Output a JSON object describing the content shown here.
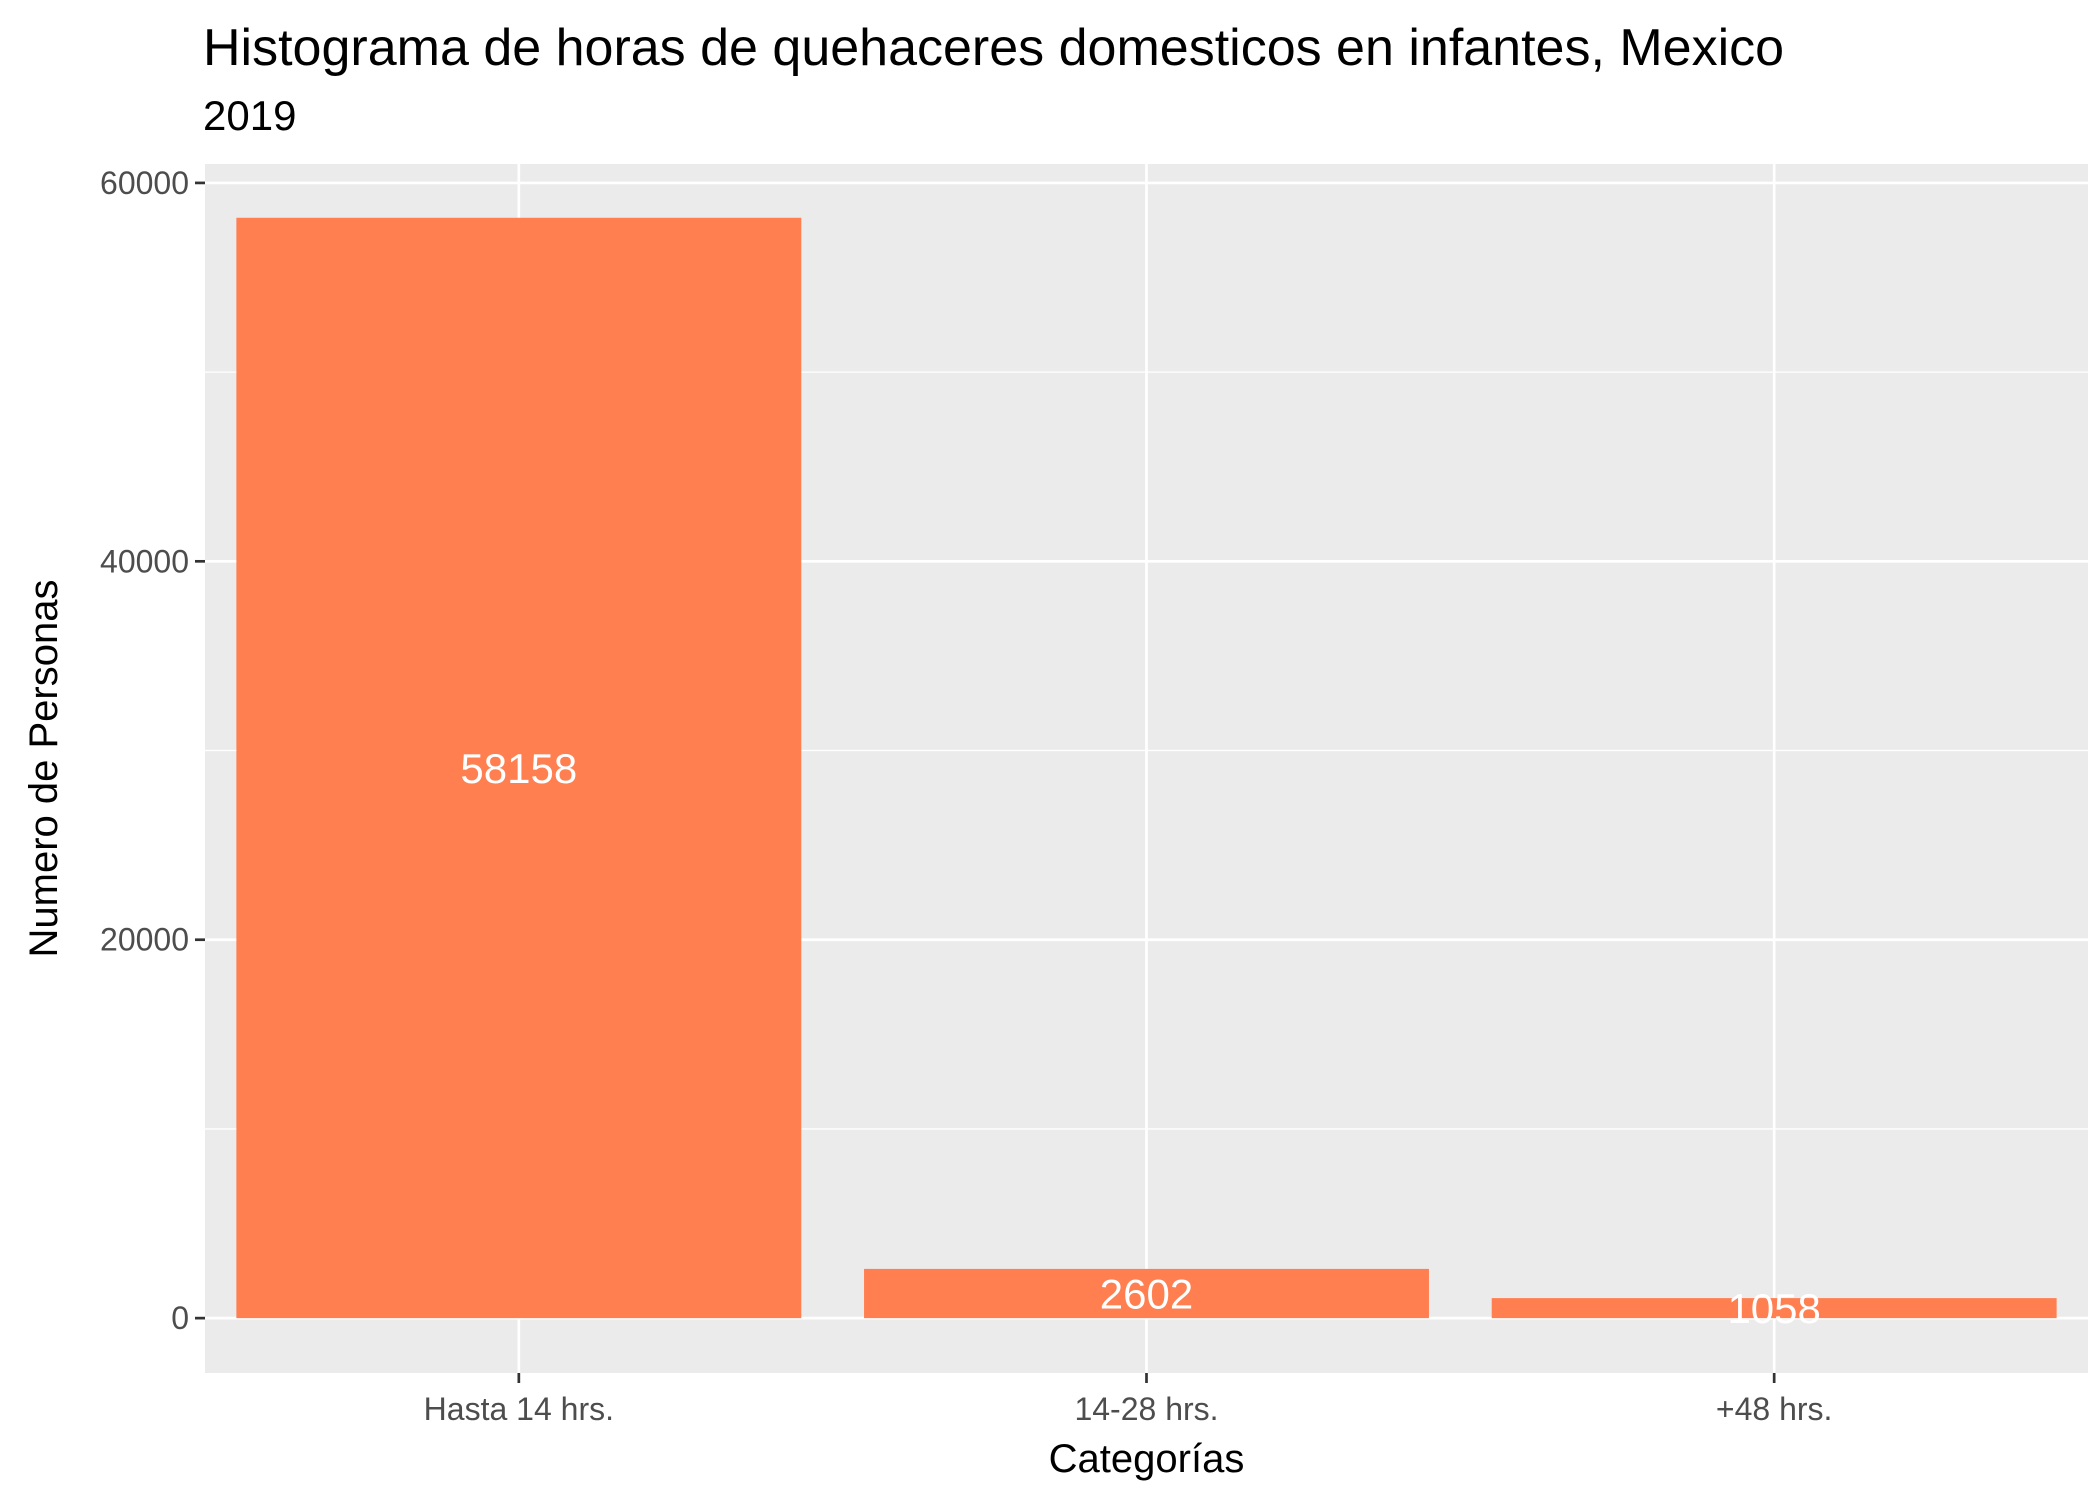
{
  "chart_data": {
    "type": "bar",
    "title": "Histograma de horas de quehaceres domesticos en infantes, Mexico",
    "subtitle": "2019",
    "xlabel": "Categorías",
    "ylabel": "Numero de Personas",
    "categories": [
      "Hasta 14 hrs.",
      "14-28 hrs.",
      "+48 hrs."
    ],
    "values": [
      58158,
      2602,
      1058
    ],
    "data_labels": [
      "58158",
      "2602",
      "1058"
    ],
    "ylim": [
      -2900,
      61000
    ],
    "yticks": [
      0,
      20000,
      40000,
      60000
    ],
    "ytick_labels": [
      "0",
      "20000",
      "40000",
      "60000"
    ],
    "grid": true,
    "bar_color": "#FF7F50",
    "panel_color": "#EBEBEB",
    "grid_color": "#FFFFFF"
  }
}
